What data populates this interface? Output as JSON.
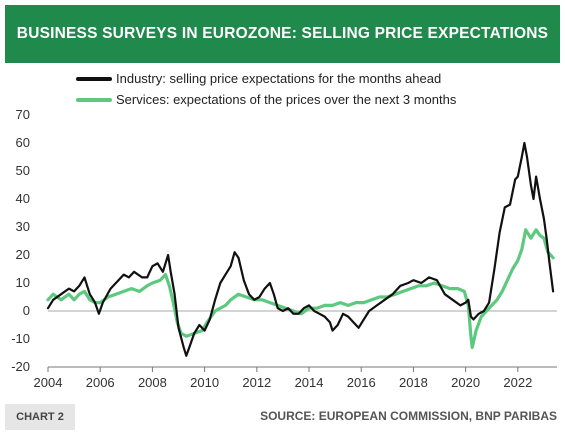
{
  "header": {
    "title": "BUSINESS SURVEYS IN EUROZONE: SELLING PRICE EXPECTATIONS"
  },
  "footer": {
    "chart_label": "CHART 2",
    "source": "SOURCE: EUROPEAN COMMISSION, BNP PARIBAS"
  },
  "colors": {
    "banner": "#1f8a4c",
    "industry": "#111111",
    "services": "#5cc97e",
    "zero_line": "#aaaaaa"
  },
  "chart_data": {
    "type": "line",
    "xlim": [
      2004,
      2023.5
    ],
    "ylim": [
      -20,
      70
    ],
    "xticks": [
      2004,
      2006,
      2008,
      2010,
      2012,
      2014,
      2016,
      2018,
      2020,
      2022
    ],
    "xtick_labels": [
      "2004",
      "2006",
      "2008",
      "2010",
      "2012",
      "2014",
      "2016",
      "2018",
      "2020",
      "2022"
    ],
    "yticks": [
      -20,
      -10,
      0,
      10,
      20,
      30,
      40,
      50,
      60,
      70
    ],
    "ytick_labels": [
      "-20",
      "-10",
      "0",
      "10",
      "20",
      "30",
      "40",
      "50",
      "60",
      "70"
    ],
    "grid": false,
    "legend_position": "top",
    "series": [
      {
        "name": "Industry: selling price expectations for the months ahead",
        "color": "#111111",
        "points": [
          [
            2004.0,
            1
          ],
          [
            2004.2,
            4
          ],
          [
            2004.5,
            6
          ],
          [
            2004.8,
            8
          ],
          [
            2005.0,
            7
          ],
          [
            2005.2,
            9
          ],
          [
            2005.4,
            12
          ],
          [
            2005.6,
            6
          ],
          [
            2005.8,
            3
          ],
          [
            2005.95,
            -1
          ],
          [
            2006.1,
            3
          ],
          [
            2006.4,
            8
          ],
          [
            2006.7,
            11
          ],
          [
            2006.9,
            13
          ],
          [
            2007.1,
            12
          ],
          [
            2007.3,
            14
          ],
          [
            2007.6,
            12
          ],
          [
            2007.8,
            12
          ],
          [
            2008.0,
            16
          ],
          [
            2008.2,
            17
          ],
          [
            2008.4,
            14
          ],
          [
            2008.5,
            17
          ],
          [
            2008.6,
            20
          ],
          [
            2008.7,
            14
          ],
          [
            2008.85,
            6
          ],
          [
            2009.0,
            -6
          ],
          [
            2009.2,
            -13
          ],
          [
            2009.3,
            -16
          ],
          [
            2009.45,
            -12
          ],
          [
            2009.6,
            -8
          ],
          [
            2009.8,
            -5
          ],
          [
            2010.0,
            -7
          ],
          [
            2010.2,
            -3
          ],
          [
            2010.4,
            4
          ],
          [
            2010.6,
            10
          ],
          [
            2010.8,
            13
          ],
          [
            2011.0,
            16
          ],
          [
            2011.15,
            21
          ],
          [
            2011.3,
            19
          ],
          [
            2011.5,
            11
          ],
          [
            2011.7,
            6
          ],
          [
            2011.9,
            4
          ],
          [
            2012.1,
            5
          ],
          [
            2012.3,
            8
          ],
          [
            2012.5,
            10
          ],
          [
            2012.65,
            6
          ],
          [
            2012.8,
            1
          ],
          [
            2013.0,
            0
          ],
          [
            2013.2,
            1
          ],
          [
            2013.4,
            -1
          ],
          [
            2013.6,
            -1
          ],
          [
            2013.8,
            1
          ],
          [
            2014.0,
            2
          ],
          [
            2014.2,
            0
          ],
          [
            2014.4,
            -1
          ],
          [
            2014.6,
            -2
          ],
          [
            2014.8,
            -4
          ],
          [
            2014.9,
            -7
          ],
          [
            2015.1,
            -5
          ],
          [
            2015.3,
            -1
          ],
          [
            2015.5,
            -2
          ],
          [
            2015.7,
            -4
          ],
          [
            2015.9,
            -6
          ],
          [
            2016.1,
            -3
          ],
          [
            2016.3,
            0
          ],
          [
            2016.6,
            2
          ],
          [
            2016.9,
            4
          ],
          [
            2017.2,
            6
          ],
          [
            2017.5,
            9
          ],
          [
            2017.8,
            10
          ],
          [
            2018.0,
            11
          ],
          [
            2018.3,
            10
          ],
          [
            2018.6,
            12
          ],
          [
            2018.9,
            11
          ],
          [
            2019.2,
            6
          ],
          [
            2019.5,
            4
          ],
          [
            2019.8,
            2
          ],
          [
            2020.0,
            3
          ],
          [
            2020.1,
            4
          ],
          [
            2020.2,
            -2
          ],
          [
            2020.3,
            -3
          ],
          [
            2020.5,
            -1
          ],
          [
            2020.7,
            0
          ],
          [
            2020.9,
            3
          ],
          [
            2021.1,
            15
          ],
          [
            2021.3,
            28
          ],
          [
            2021.5,
            37
          ],
          [
            2021.7,
            38
          ],
          [
            2021.9,
            47
          ],
          [
            2022.0,
            48
          ],
          [
            2022.15,
            55
          ],
          [
            2022.25,
            60
          ],
          [
            2022.35,
            55
          ],
          [
            2022.5,
            45
          ],
          [
            2022.6,
            40
          ],
          [
            2022.7,
            48
          ],
          [
            2022.85,
            40
          ],
          [
            2023.0,
            33
          ],
          [
            2023.1,
            26
          ],
          [
            2023.2,
            18
          ],
          [
            2023.35,
            7
          ]
        ]
      },
      {
        "name": "Services: expectations of the prices over the next 3 months",
        "color": "#5cc97e",
        "points": [
          [
            2004.0,
            4
          ],
          [
            2004.2,
            6
          ],
          [
            2004.5,
            4
          ],
          [
            2004.8,
            6
          ],
          [
            2005.0,
            4
          ],
          [
            2005.2,
            6
          ],
          [
            2005.4,
            7
          ],
          [
            2005.6,
            4
          ],
          [
            2005.8,
            3
          ],
          [
            2006.0,
            3
          ],
          [
            2006.3,
            5
          ],
          [
            2006.6,
            6
          ],
          [
            2006.9,
            7
          ],
          [
            2007.2,
            8
          ],
          [
            2007.5,
            7
          ],
          [
            2007.8,
            9
          ],
          [
            2008.0,
            10
          ],
          [
            2008.3,
            11
          ],
          [
            2008.5,
            13
          ],
          [
            2008.65,
            9
          ],
          [
            2008.8,
            3
          ],
          [
            2008.95,
            -4
          ],
          [
            2009.1,
            -8
          ],
          [
            2009.3,
            -9
          ],
          [
            2009.6,
            -8
          ],
          [
            2009.9,
            -7
          ],
          [
            2010.1,
            -4
          ],
          [
            2010.4,
            0
          ],
          [
            2010.8,
            2
          ],
          [
            2011.0,
            4
          ],
          [
            2011.3,
            6
          ],
          [
            2011.6,
            5
          ],
          [
            2011.9,
            4
          ],
          [
            2012.2,
            4
          ],
          [
            2012.5,
            3
          ],
          [
            2012.8,
            2
          ],
          [
            2013.1,
            1
          ],
          [
            2013.4,
            0
          ],
          [
            2013.7,
            -1
          ],
          [
            2014.0,
            1
          ],
          [
            2014.3,
            1
          ],
          [
            2014.6,
            2
          ],
          [
            2014.9,
            2
          ],
          [
            2015.2,
            3
          ],
          [
            2015.5,
            2
          ],
          [
            2015.8,
            3
          ],
          [
            2016.1,
            3
          ],
          [
            2016.4,
            4
          ],
          [
            2016.7,
            5
          ],
          [
            2017.0,
            5
          ],
          [
            2017.3,
            6
          ],
          [
            2017.6,
            7
          ],
          [
            2017.9,
            8
          ],
          [
            2018.2,
            9
          ],
          [
            2018.5,
            9
          ],
          [
            2018.8,
            10
          ],
          [
            2019.1,
            9
          ],
          [
            2019.4,
            8
          ],
          [
            2019.7,
            8
          ],
          [
            2019.95,
            7
          ],
          [
            2020.1,
            2
          ],
          [
            2020.2,
            -9
          ],
          [
            2020.25,
            -13
          ],
          [
            2020.4,
            -7
          ],
          [
            2020.6,
            -2
          ],
          [
            2020.8,
            0
          ],
          [
            2021.0,
            2
          ],
          [
            2021.2,
            4
          ],
          [
            2021.4,
            7
          ],
          [
            2021.6,
            11
          ],
          [
            2021.8,
            15
          ],
          [
            2022.0,
            18
          ],
          [
            2022.15,
            22
          ],
          [
            2022.3,
            29
          ],
          [
            2022.5,
            26
          ],
          [
            2022.7,
            29
          ],
          [
            2022.85,
            27
          ],
          [
            2023.0,
            26
          ],
          [
            2023.15,
            21
          ],
          [
            2023.35,
            19
          ]
        ]
      }
    ]
  }
}
